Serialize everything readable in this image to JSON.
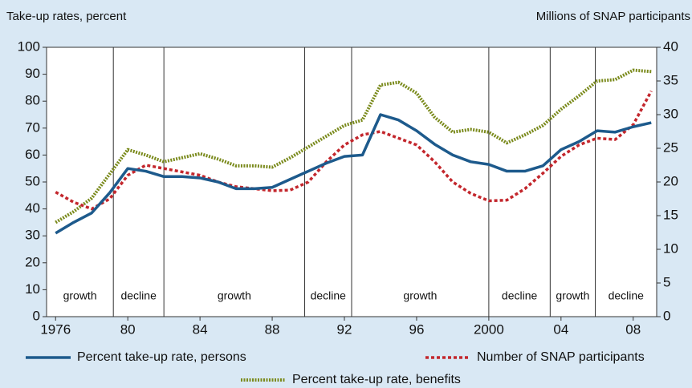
{
  "chart_data": {
    "type": "line",
    "y_label": "Take-up rates, percent",
    "y2_label": "Millions of SNAP participants",
    "x": [
      1976,
      1977,
      1978,
      1979,
      1980,
      1981,
      1982,
      1983,
      1984,
      1985,
      1986,
      1987,
      1988,
      1989,
      1990,
      1991,
      1992,
      1993,
      1994,
      1995,
      1996,
      1997,
      1998,
      1999,
      2000,
      2001,
      2002,
      2003,
      2004,
      2005,
      2006,
      2007,
      2008,
      2009
    ],
    "xlim": [
      1975.5,
      2009.3
    ],
    "xticks": [
      1976,
      {
        "value": 1980,
        "label": "80"
      },
      {
        "value": 1984,
        "label": "84"
      },
      {
        "value": 1988,
        "label": "88"
      },
      {
        "value": 1992,
        "label": "92"
      },
      {
        "value": 1996,
        "label": "96"
      },
      2000,
      {
        "value": 2004,
        "label": "04"
      },
      {
        "value": 2008,
        "label": "08"
      }
    ],
    "ylim": [
      0,
      100
    ],
    "yticks": [
      0,
      10,
      20,
      30,
      40,
      50,
      60,
      70,
      80,
      90,
      100
    ],
    "y2lim": [
      0,
      40
    ],
    "y2ticks": [
      0,
      5,
      10,
      15,
      20,
      25,
      30,
      35,
      40
    ],
    "series": [
      {
        "name": "Percent take-up rate, persons",
        "color": "#1d5a8c",
        "style": "solid",
        "values": [
          31,
          35,
          38.5,
          46,
          55,
          54,
          52,
          52,
          51.5,
          50,
          47.5,
          47.5,
          48,
          51,
          54,
          57,
          59.5,
          60,
          75,
          73,
          69,
          64,
          60,
          57.5,
          56.5,
          54,
          54,
          56,
          62,
          65,
          69,
          68.5,
          70.5,
          72
        ]
      },
      {
        "name": "Number of SNAP participants",
        "color": "#c3272d",
        "style": "dashed",
        "axis": "y2",
        "values": [
          18.5,
          17,
          16,
          17.5,
          21,
          22.5,
          22,
          21.5,
          21,
          20,
          19.3,
          19,
          18.7,
          18.8,
          20,
          23,
          25.5,
          27,
          27.5,
          26.5,
          25.5,
          23,
          20,
          18.3,
          17.2,
          17.3,
          19,
          21.3,
          23.8,
          25.5,
          26.5,
          26.3,
          28.5,
          33.5
        ]
      },
      {
        "name": "Percent take-up rate, benefits",
        "color": "#7a8a1c",
        "style": "dotted",
        "values": [
          35,
          39,
          44,
          53,
          62,
          60,
          57.5,
          59,
          60.5,
          58.5,
          56,
          56,
          55.5,
          59,
          63,
          67,
          71,
          73,
          86,
          87,
          83,
          74,
          68.5,
          69.5,
          68.5,
          64.5,
          67.5,
          71,
          77,
          82,
          87.5,
          88,
          91.5,
          91
        ]
      }
    ],
    "dividers": [
      1979.2,
      1982,
      1989.8,
      1992.4,
      2000,
      2003.4,
      2005.9
    ],
    "periods": [
      "growth",
      "decline",
      "growth",
      "decline",
      "growth",
      "decline",
      "growth",
      "decline"
    ]
  }
}
